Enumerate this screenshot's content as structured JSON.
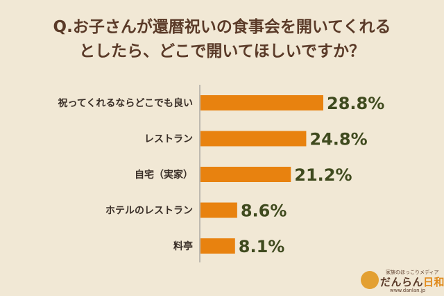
{
  "title": {
    "line1": "Q.お子さんが還暦祝いの食事会を開いてくれる",
    "line2": "としたら、どこで開いてほしいですか？"
  },
  "colors": {
    "background": "#f1e8d5",
    "bar": "#e8820f",
    "title_text": "#5a3a28",
    "value_text": "#3f4a1e"
  },
  "chart_data": {
    "type": "bar",
    "orientation": "horizontal",
    "categories": [
      "祝ってくれるならどこでも良い",
      "レストラン",
      "自宅（実家）",
      "ホテルのレストラン",
      "料亭"
    ],
    "values": [
      28.8,
      24.8,
      21.2,
      8.6,
      8.1
    ],
    "value_labels": [
      "28.8%",
      "24.8%",
      "21.2%",
      "8.6%",
      "8.1%"
    ],
    "unit": "%",
    "xlim": [
      0,
      100
    ],
    "grid": false,
    "legend": "none"
  },
  "logo": {
    "tagline": "家族のほっこりメディア",
    "name_main": "だんらん",
    "name_accent": "日和",
    "url": "www.danlan.jp"
  }
}
